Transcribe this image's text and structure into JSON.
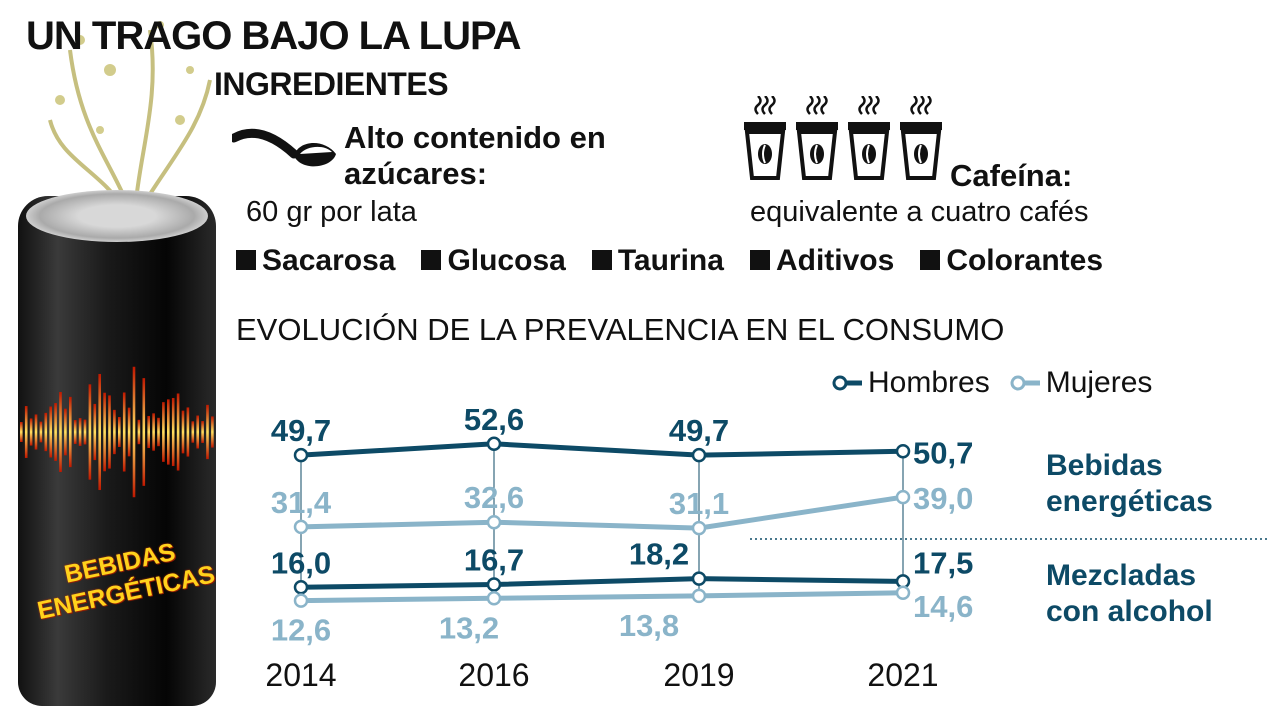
{
  "header": {
    "title": "UN TRAGO BAJO LA LUPA",
    "subtitle": "INGREDIENTES"
  },
  "sugar": {
    "icon": "spoon-icon",
    "title_line1": "Alto contenido en",
    "title_line2": "azúcares:",
    "detail": "60 gr por lata"
  },
  "caffeine": {
    "icon": "coffee-cup-icon",
    "cups": 4,
    "title": "Cafeína:",
    "detail": "equivalente a cuatro cafés"
  },
  "ingredients": [
    "Sacarosa",
    "Glucosa",
    "Taurina",
    "Aditivos",
    "Colorantes"
  ],
  "can": {
    "label_line1": "BEBIDAS",
    "label_line2": "ENERGÉTICAS"
  },
  "colors": {
    "hombres": "#0d4a66",
    "mujeres": "#8ab4c9"
  },
  "chart_data": {
    "type": "line",
    "title": "EVOLUCIÓN DE LA PREVALENCIA EN EL CONSUMO",
    "x": [
      "2014",
      "2016",
      "2019",
      "2021"
    ],
    "legend": [
      "Hombres",
      "Mujeres"
    ],
    "legend_placement": "top-right",
    "groups": [
      {
        "label_line1": "Bebidas",
        "label_line2": "energéticas",
        "series": [
          {
            "name": "Hombres",
            "values": [
              49.7,
              52.6,
              49.7,
              50.7
            ],
            "labels": [
              "49,7",
              "52,6",
              "49,7",
              "50,7"
            ]
          },
          {
            "name": "Mujeres",
            "values": [
              31.4,
              32.6,
              31.1,
              39.0
            ],
            "labels": [
              "31,4",
              "32,6",
              "31,1",
              "39,0"
            ]
          }
        ]
      },
      {
        "label_line1": "Mezcladas",
        "label_line2": "con alcohol",
        "series": [
          {
            "name": "Hombres",
            "values": [
              16.0,
              16.7,
              18.2,
              17.5
            ],
            "labels": [
              "16,0",
              "16,7",
              "18,2",
              "17,5"
            ]
          },
          {
            "name": "Mujeres",
            "values": [
              12.6,
              13.2,
              13.8,
              14.6
            ],
            "labels": [
              "12,6",
              "13,2",
              "13,8",
              "14,6"
            ]
          }
        ]
      }
    ]
  }
}
